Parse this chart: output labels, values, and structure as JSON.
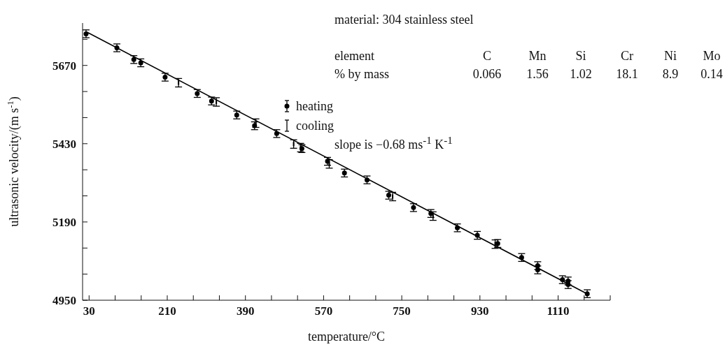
{
  "chart_data": {
    "type": "scatter",
    "xlabel": "temperature/°C",
    "ylabel": "ultrasonic velocity/(m s$^{-1}$)",
    "xlim": [
      15,
      1230
    ],
    "xticks": [
      30,
      {
        "value": 90,
        "label": null
      },
      {
        "value": 150,
        "label": null
      },
      210,
      {
        "value": 270,
        "label": null
      },
      {
        "value": 330,
        "label": null
      },
      390,
      {
        "value": 450,
        "label": null
      },
      {
        "value": 510,
        "label": null
      },
      570,
      {
        "value": 630,
        "label": null
      },
      {
        "value": 690,
        "label": null
      },
      750,
      {
        "value": 810,
        "label": null
      },
      {
        "value": 870,
        "label": null
      },
      930,
      {
        "value": 990,
        "label": null
      },
      {
        "value": 1050,
        "label": null
      },
      1110,
      {
        "value": 1170,
        "label": null
      },
      {
        "value": 1230,
        "label": null
      }
    ],
    "ylim": [
      4950,
      5800
    ],
    "yticks": [
      4950,
      {
        "value": 5030,
        "label": null
      },
      {
        "value": 5110,
        "label": null
      },
      5190,
      {
        "value": 5270,
        "label": null
      },
      {
        "value": 5350,
        "label": null
      },
      5430,
      {
        "value": 5510,
        "label": null
      },
      {
        "value": 5590,
        "label": null
      },
      5670,
      {
        "value": 5750,
        "label": null
      }
    ],
    "legend": "top",
    "series": [
      {
        "name": "heating",
        "marker": "circle",
        "color": "#000000",
        "x": [
          23,
          94,
          133,
          149,
          205,
          279,
          312,
          370,
          411,
          462,
          520,
          579,
          618,
          670,
          720,
          777,
          817,
          878,
          924,
          971,
          1026,
          1063,
          1063,
          1120,
          1133,
          1133,
          1177
        ],
        "values": [
          5767,
          5724,
          5688,
          5678,
          5634,
          5584,
          5561,
          5518,
          5485,
          5461,
          5415,
          5376,
          5340,
          5319,
          5272,
          5234,
          5216,
          5172,
          5149,
          5124,
          5081,
          5056,
          5043,
          5013,
          5009,
          4998,
          4970
        ],
        "errors": [
          12,
          12,
          12,
          12,
          12,
          12,
          12,
          12,
          12,
          12,
          12,
          12,
          12,
          12,
          12,
          12,
          12,
          12,
          12,
          12,
          12,
          12,
          12,
          12,
          12,
          12,
          12
        ]
      },
      {
        "name": "cooling",
        "color": "#000000",
        "x": [
          236,
          323,
          414,
          501,
          517,
          583,
          729,
          822,
          965
        ],
        "values": [
          5617,
          5558,
          5493,
          5429,
          5418,
          5368,
          5268,
          5208,
          5122
        ],
        "errors": [
          13,
          13,
          13,
          13,
          13,
          13,
          13,
          13,
          13
        ]
      },
      {
        "type": "line",
        "color": "#000000",
        "marker": "none",
        "line_style": "solid",
        "x": [
          25,
          1182
        ],
        "values": [
          5772,
          4966
        ]
      }
    ],
    "annotations": [
      "material: 304 stainless steel",
      "element",
      "C",
      "Mn",
      "Si",
      "Cr",
      "Ni",
      "Mo",
      "% by mass",
      "0.066",
      "1.56",
      "1.02",
      "18.1",
      "8.9",
      "0.14",
      "slope is −0.68 ms$^{-1}$ K$^{-1}$"
    ]
  }
}
